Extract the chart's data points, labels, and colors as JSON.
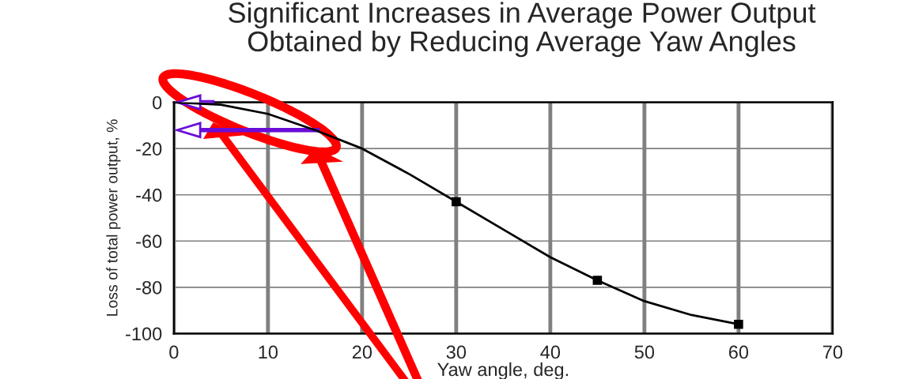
{
  "chart_data": {
    "type": "line",
    "title": "Significant Increases in Average Power Output\nObtained by Reducing Average Yaw Angles",
    "xlabel": "Yaw angle, deg.",
    "ylabel": "Loss of total power output, %",
    "x": [
      0,
      5,
      10,
      15,
      20,
      25,
      30,
      35,
      40,
      45,
      50,
      55,
      60
    ],
    "series": [
      {
        "color": "#000000",
        "values": [
          0,
          -1,
          -5,
          -12,
          -20,
          -31,
          -43,
          -55,
          -67,
          -77,
          -86,
          -92,
          -96
        ],
        "marker": "none"
      },
      {
        "type": "scatter",
        "color": "#000000",
        "x": [
          30,
          45,
          60
        ],
        "values": [
          -43,
          -77,
          -96
        ],
        "marker": "square"
      }
    ],
    "xlim": [
      0,
      70
    ],
    "xticks": [
      0,
      10,
      20,
      30,
      40,
      50,
      60,
      70
    ],
    "ylim": [
      -100,
      0
    ],
    "yticks": [
      -100,
      -80,
      -60,
      -40,
      -20,
      0
    ],
    "grid": true
  }
}
